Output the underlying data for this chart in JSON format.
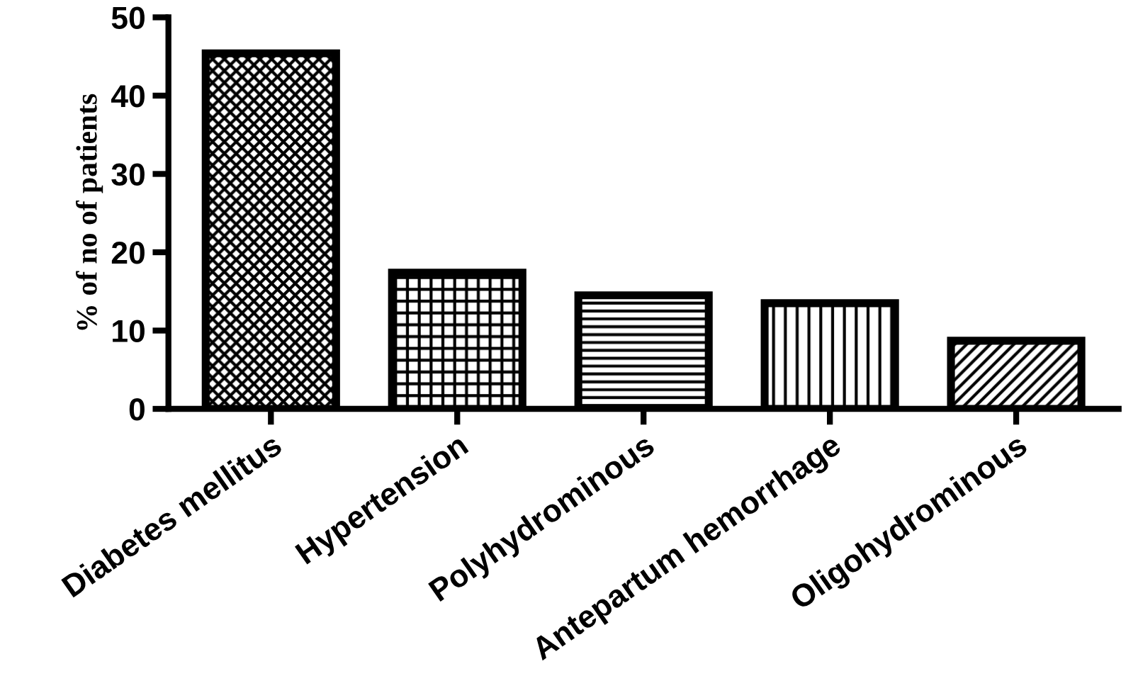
{
  "chart_data": {
    "type": "bar",
    "ylabel": "% of no of patients",
    "categories": [
      "Diabetes mellitus",
      "Hypertension",
      "Polyhydrominous",
      "Antepartum hemorrhage",
      "Oligohydrominous"
    ],
    "values": [
      45.4,
      17.4,
      14.5,
      13.5,
      8.7
    ],
    "color": "#000000",
    "ylim": [
      0,
      50
    ],
    "yticks": [
      0,
      10,
      20,
      30,
      40,
      50
    ],
    "grid": false,
    "legend": false
  }
}
